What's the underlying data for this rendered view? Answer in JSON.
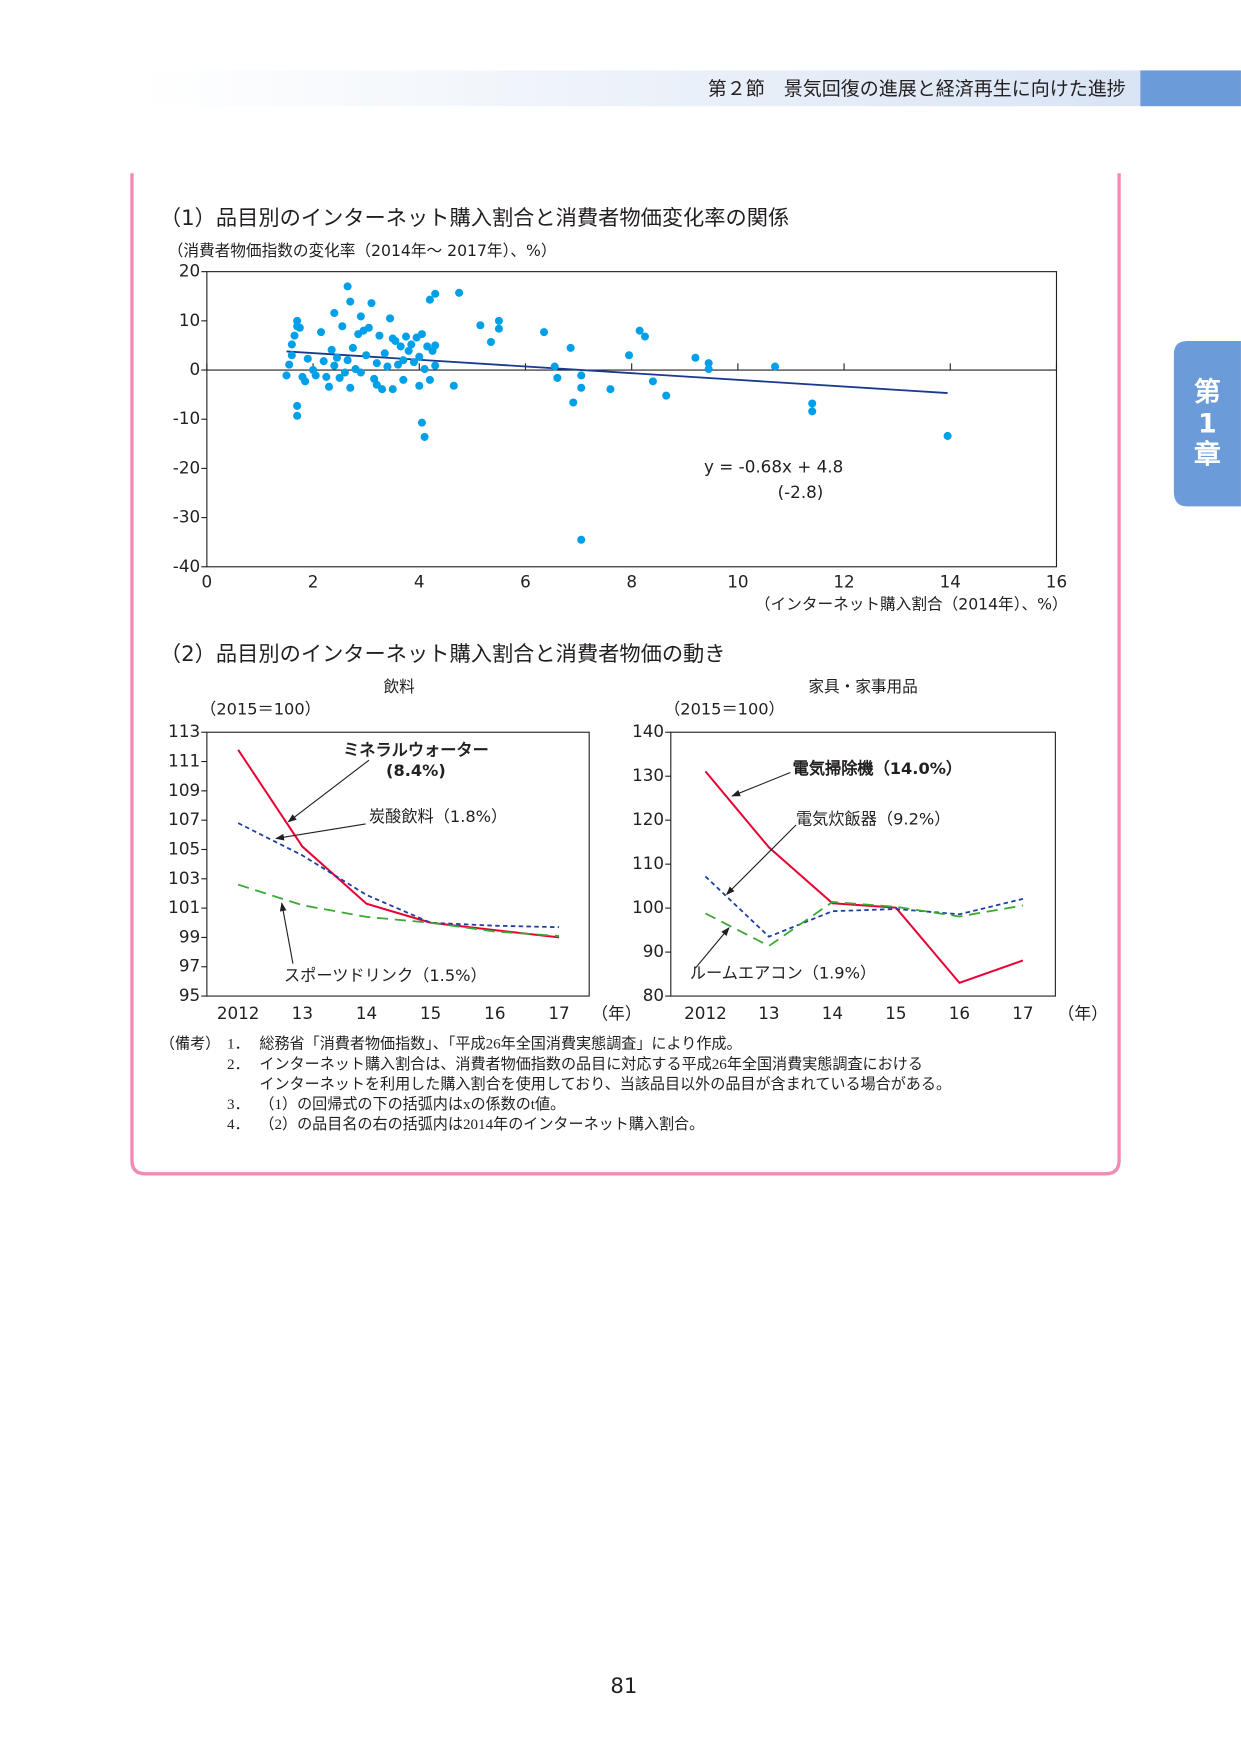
{
  "header": {
    "title": "第２節　景気回復の進展と経済再生に向けた進捗"
  },
  "side_tab": {
    "lines": [
      "第",
      "1",
      "章"
    ]
  },
  "sections": {
    "section1_title": "（1）品目別のインターネット購入割合と消費者物価変化率の関係",
    "section2_title": "（2）品目別のインターネット購入割合と消費者物価の動き"
  },
  "chart_data": [
    {
      "type": "scatter",
      "y_label": "（消費者物価指数の変化率（2014年～ 2017年）、%）",
      "x_label": "（インターネット購入割合（2014年）、%）",
      "color": "#00a0e9",
      "xlim": [
        0,
        16
      ],
      "xticks": [
        0,
        2,
        4,
        6,
        8,
        10,
        12,
        14,
        16
      ],
      "ylim": [
        -40,
        20
      ],
      "yticks": [
        -40,
        -30,
        -20,
        -10,
        0,
        10,
        20
      ],
      "x": [
        1.5,
        1.55,
        1.6,
        1.65,
        1.7,
        1.7,
        1.7,
        1.7,
        1.75,
        1.6,
        1.8,
        1.85,
        1.9,
        2.0,
        2.05,
        2.15,
        2.2,
        2.25,
        2.3,
        2.35,
        2.4,
        2.4,
        2.45,
        2.5,
        2.55,
        2.6,
        2.65,
        2.65,
        2.7,
        2.7,
        2.75,
        2.8,
        2.85,
        2.9,
        2.9,
        2.95,
        3.0,
        3.05,
        3.1,
        3.15,
        3.2,
        3.2,
        3.25,
        3.3,
        3.35,
        3.4,
        3.45,
        3.5,
        3.5,
        3.55,
        3.6,
        3.65,
        3.7,
        3.7,
        3.75,
        3.8,
        3.85,
        3.9,
        3.95,
        4.0,
        4.0,
        4.05,
        4.05,
        4.1,
        4.1,
        4.15,
        4.2,
        4.2,
        4.25,
        4.3,
        4.3,
        4.3,
        4.65,
        4.75,
        5.15,
        5.35,
        5.5,
        5.5,
        6.35,
        6.55,
        6.6,
        6.85,
        6.9,
        7.05,
        7.05,
        7.05,
        7.6,
        7.95,
        8.15,
        8.25,
        8.4,
        8.65,
        9.2,
        9.45,
        9.45,
        10.7,
        11.4,
        11.4,
        13.95
      ],
      "values": [
        -1.1,
        1.1,
        5.2,
        7,
        10,
        8.9,
        -7.3,
        -9.3,
        8.6,
        3,
        -1.4,
        -2.3,
        2.3,
        0,
        -1.1,
        7.7,
        1.8,
        -1.4,
        -3.4,
        4.1,
        11.6,
        0.9,
        2.5,
        -1.6,
        8.9,
        -0.5,
        2,
        17,
        13.9,
        -3.6,
        4.5,
        0.2,
        7.3,
        10.9,
        -0.5,
        8,
        3,
        8.6,
        13.6,
        -1.8,
        1.4,
        -3,
        7,
        -3.9,
        3.4,
        0.7,
        10.5,
        6.4,
        -3.9,
        5.9,
        1.1,
        4.8,
        -2,
        2,
        6.8,
        3.9,
        5.2,
        1.6,
        6.6,
        -3.2,
        2.7,
        7.3,
        -10.7,
        -13.6,
        0.2,
        4.8,
        -2,
        14.3,
        3.9,
        0.9,
        15.5,
        5,
        -3.2,
        15.7,
        9.1,
        5.7,
        10,
        8.4,
        7.7,
        0.7,
        -1.6,
        4.5,
        -6.6,
        -1.1,
        -3.6,
        -34.5,
        -3.9,
        3,
        8,
        6.8,
        -2.3,
        -5.2,
        2.5,
        1.4,
        0.2,
        0.7,
        -6.8,
        -8.4,
        -13.4
      ],
      "trendline": {
        "slope": -0.68,
        "intercept": 4.8,
        "color": "#1a3a8f",
        "label": "y = -0.68x + 4.8",
        "t_value_label": "(-2.8)"
      }
    },
    {
      "type": "line",
      "title": "飲料",
      "y_label": "（2015＝100）",
      "x_unit": "（年）",
      "categories": [
        "2012",
        "13",
        "14",
        "15",
        "16",
        "17"
      ],
      "ylim": [
        95,
        113
      ],
      "yticks": [
        95,
        97,
        99,
        101,
        103,
        105,
        107,
        109,
        111,
        113
      ],
      "series": [
        {
          "name": "ミネラルウォーター",
          "share": "(8.4%)",
          "color": "#e60033",
          "style": "solid",
          "bold": true,
          "values": [
            111.8,
            105.2,
            101.3,
            100.0,
            99.5,
            99.0
          ]
        },
        {
          "name": "炭酸飲料",
          "share": "（1.8%）",
          "color": "#1d3fa0",
          "style": "dotted",
          "bold": false,
          "values": [
            106.8,
            104.6,
            101.9,
            100.0,
            99.8,
            99.7
          ]
        },
        {
          "name": "スポーツドリンク",
          "share": "（1.5%）",
          "color": "#3aa935",
          "style": "dashed",
          "bold": false,
          "values": [
            102.6,
            101.2,
            100.4,
            100.0,
            99.4,
            99.1
          ]
        }
      ]
    },
    {
      "type": "line",
      "title": "家具・家事用品",
      "y_label": "（2015＝100）",
      "x_unit": "（年）",
      "categories": [
        "2012",
        "13",
        "14",
        "15",
        "16",
        "17"
      ],
      "ylim": [
        80,
        140
      ],
      "yticks": [
        80,
        90,
        100,
        110,
        120,
        130,
        140
      ],
      "series": [
        {
          "name": "電気掃除機",
          "share": "（14.0%）",
          "color": "#e60033",
          "style": "solid",
          "bold": true,
          "values": [
            131.1,
            113.8,
            101.1,
            100.1,
            83.0,
            88.1
          ]
        },
        {
          "name": "電気炊飯器",
          "share": "（9.2%）",
          "color": "#1d3fa0",
          "style": "dotted",
          "bold": false,
          "values": [
            107.2,
            93.5,
            99.3,
            99.8,
            98.6,
            102.1
          ]
        },
        {
          "name": "ルームエアコン",
          "share": "（1.9%）",
          "color": "#3aa935",
          "style": "dashed",
          "bold": false,
          "values": [
            98.8,
            91.4,
            101.4,
            100.3,
            98.1,
            100.6
          ]
        }
      ]
    }
  ],
  "notes": {
    "label": "（備考）",
    "items": [
      {
        "num": "1．",
        "lines": [
          "総務省「消費者物価指数」、「平成26年全国消費実態調査」により作成。"
        ]
      },
      {
        "num": "2．",
        "lines": [
          "インターネット購入割合は、消費者物価指数の品目に対応する平成26年全国消費実態調査における",
          "インターネットを利用した購入割合を使用しており、当該品目以外の品目が含まれている場合がある。"
        ]
      },
      {
        "num": "3．",
        "lines": [
          "（1）の回帰式の下の括弧内はxの係数のt値。"
        ]
      },
      {
        "num": "4．",
        "lines": [
          "（2）の品目名の右の括弧内は2014年のインターネット購入割合。"
        ]
      }
    ]
  },
  "page_number": "81"
}
